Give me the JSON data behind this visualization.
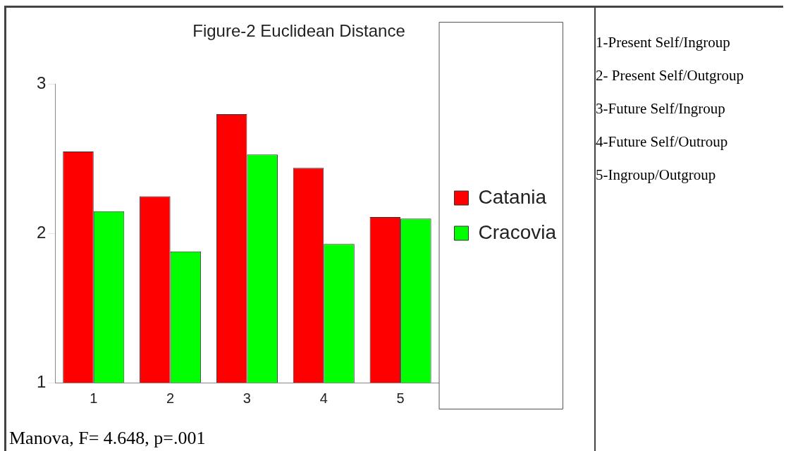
{
  "chart_data": {
    "type": "bar",
    "title": "Figure-2 Euclidean Distance",
    "categories": [
      "1",
      "2",
      "3",
      "4",
      "5"
    ],
    "series": [
      {
        "name": "Catania",
        "color": "#ff0000",
        "values": [
          2.55,
          2.25,
          2.8,
          2.44,
          2.11
        ]
      },
      {
        "name": "Cracovia",
        "color": "#00ff00",
        "values": [
          2.15,
          1.88,
          2.53,
          1.93,
          2.1
        ]
      }
    ],
    "ylim": [
      1,
      3
    ],
    "yticks": [
      1,
      2,
      3
    ],
    "grid": false,
    "legend": "right",
    "annotations": [
      "1-Present Self/Ingroup",
      "2- Present Self/Outgroup",
      "3-Future Self/Ingroup",
      "4-Future Self/Outroup",
      "5-Ingroup/Outgroup",
      "Manova, F= 4.648, p=.001"
    ]
  }
}
